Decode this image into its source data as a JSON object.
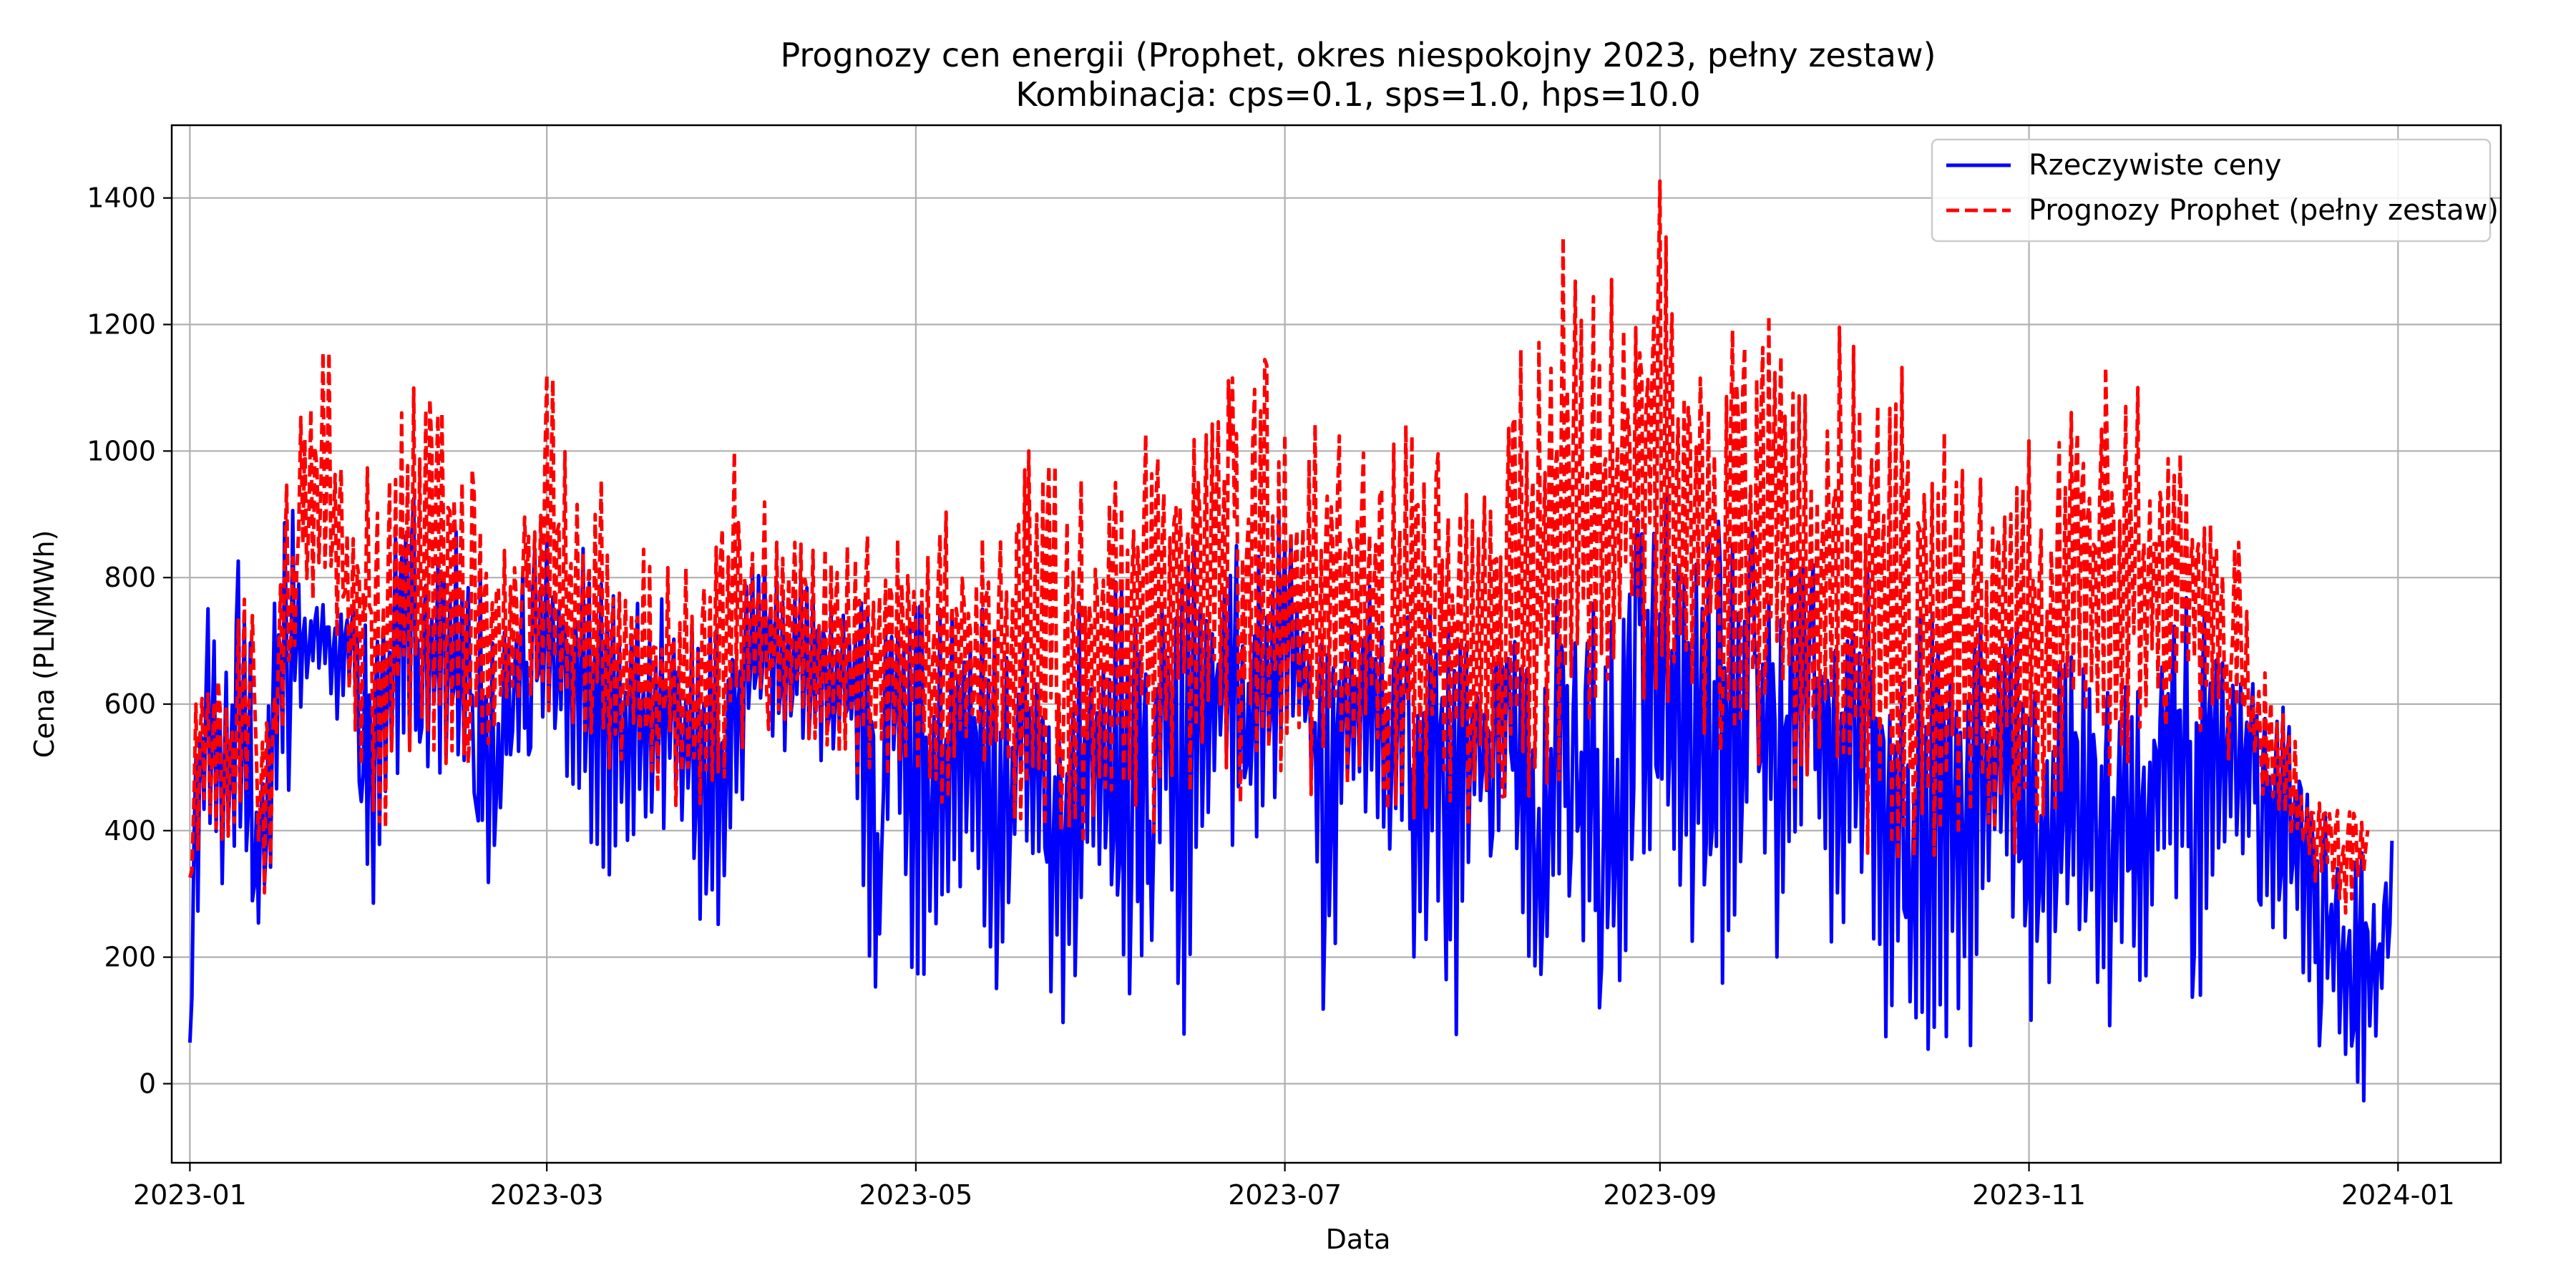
{
  "chart_data": {
    "type": "line",
    "title": "Prognozy cen energii (Prophet, okres niespokojny 2023, pełny zestaw)",
    "subtitle": "Kombinacja: cps=0.1, sps=1.0, hps=10.0",
    "xlabel": "Data",
    "ylabel": "Cena (PLN/MWh)",
    "x_range": [
      "2022-12-29",
      "2024-01-18"
    ],
    "ylim": [
      -125,
      1515
    ],
    "x_ticks": [
      "2023-01",
      "2023-03",
      "2023-05",
      "2023-07",
      "2023-09",
      "2023-11",
      "2024-01"
    ],
    "x_tick_dates": [
      "2023-01-01",
      "2023-03-01",
      "2023-05-01",
      "2023-07-01",
      "2023-09-01",
      "2023-11-01",
      "2024-01-01"
    ],
    "y_ticks": [
      0,
      200,
      400,
      600,
      800,
      1000,
      1200,
      1400
    ],
    "grid": true,
    "legend_position": "top-right",
    "series": [
      {
        "name": "Rzeczywiste ceny",
        "color": "#0000ff",
        "style": "solid",
        "x": [
          "2023-01-01",
          "2023-01-02",
          "2023-01-04",
          "2023-01-06",
          "2023-01-08",
          "2023-01-10",
          "2023-01-12",
          "2023-01-14",
          "2023-01-16",
          "2023-01-18",
          "2023-01-20",
          "2023-01-23",
          "2023-01-25",
          "2023-01-28",
          "2023-01-31",
          "2023-02-02",
          "2023-02-05",
          "2023-02-08",
          "2023-02-11",
          "2023-02-14",
          "2023-02-17",
          "2023-02-20",
          "2023-02-23",
          "2023-02-26",
          "2023-03-01",
          "2023-03-04",
          "2023-03-07",
          "2023-03-10",
          "2023-03-13",
          "2023-03-16",
          "2023-03-19",
          "2023-03-22",
          "2023-03-25",
          "2023-03-28",
          "2023-03-31",
          "2023-04-03",
          "2023-04-06",
          "2023-04-09",
          "2023-04-12",
          "2023-04-15",
          "2023-04-18",
          "2023-04-21",
          "2023-04-24",
          "2023-04-27",
          "2023-04-30",
          "2023-05-03",
          "2023-05-06",
          "2023-05-09",
          "2023-05-12",
          "2023-05-15",
          "2023-05-18",
          "2023-05-21",
          "2023-05-24",
          "2023-05-27",
          "2023-05-30",
          "2023-06-02",
          "2023-06-05",
          "2023-06-08",
          "2023-06-11",
          "2023-06-14",
          "2023-06-17",
          "2023-06-20",
          "2023-06-23",
          "2023-06-26",
          "2023-06-29",
          "2023-07-02",
          "2023-07-05",
          "2023-07-08",
          "2023-07-11",
          "2023-07-14",
          "2023-07-17",
          "2023-07-20",
          "2023-07-23",
          "2023-07-26",
          "2023-07-29",
          "2023-08-01",
          "2023-08-04",
          "2023-08-07",
          "2023-08-10",
          "2023-08-13",
          "2023-08-16",
          "2023-08-19",
          "2023-08-22",
          "2023-08-25",
          "2023-08-28",
          "2023-08-31",
          "2023-09-03",
          "2023-09-06",
          "2023-09-09",
          "2023-09-12",
          "2023-09-15",
          "2023-09-18",
          "2023-09-21",
          "2023-09-24",
          "2023-09-27",
          "2023-09-30",
          "2023-10-03",
          "2023-10-06",
          "2023-10-09",
          "2023-10-12",
          "2023-10-15",
          "2023-10-18",
          "2023-10-21",
          "2023-10-24",
          "2023-10-27",
          "2023-10-30",
          "2023-11-02",
          "2023-11-05",
          "2023-11-08",
          "2023-11-11",
          "2023-11-14",
          "2023-11-17",
          "2023-11-20",
          "2023-11-23",
          "2023-11-26",
          "2023-11-29",
          "2023-12-02",
          "2023-12-05",
          "2023-12-08",
          "2023-12-11",
          "2023-12-14",
          "2023-12-17",
          "2023-12-19",
          "2023-12-21",
          "2023-12-23",
          "2023-12-25",
          "2023-12-27",
          "2023-12-29",
          "2023-12-31"
        ],
        "min": [
          30,
          200,
          380,
          300,
          320,
          310,
          80,
          280,
          420,
          480,
          620,
          650,
          560,
          620,
          190,
          350,
          500,
          540,
          450,
          500,
          460,
          260,
          520,
          520,
          560,
          460,
          440,
          280,
          350,
          400,
          400,
          380,
          350,
          80,
          200,
          520,
          560,
          520,
          540,
          480,
          500,
          480,
          105,
          500,
          80,
          70,
          240,
          280,
          260,
          70,
          400,
          320,
          50,
          35,
          380,
          250,
          20,
          150,
          380,
          15,
          330,
          480,
          300,
          380,
          380,
          580,
          440,
          15,
          480,
          420,
          380,
          350,
          50,
          320,
          40,
          380,
          360,
          440,
          130,
          70,
          350,
          190,
          120,
          70,
          200,
          300,
          200,
          230,
          120,
          170,
          300,
          340,
          160,
          420,
          300,
          160,
          320,
          160,
          30,
          30,
          60,
          10,
          -20,
          150,
          300,
          220,
          40,
          90,
          200,
          150,
          60,
          200,
          130,
          360,
          230,
          90,
          380,
          280,
          330,
          210,
          200,
          150,
          60,
          100,
          0,
          -50,
          -20,
          20,
          150
        ],
        "max": [
          70,
          680,
          780,
          660,
          780,
          940,
          700,
          650,
          870,
          920,
          760,
          760,
          800,
          770,
          720,
          760,
          980,
          950,
          880,
          940,
          880,
          700,
          800,
          850,
          870,
          800,
          850,
          790,
          830,
          790,
          800,
          780,
          770,
          740,
          760,
          820,
          840,
          820,
          800,
          790,
          780,
          760,
          760,
          780,
          760,
          750,
          760,
          740,
          760,
          700,
          720,
          700,
          720,
          780,
          720,
          820,
          760,
          700,
          760,
          800,
          920,
          800,
          860,
          820,
          880,
          920,
          740,
          760,
          760,
          800,
          760,
          720,
          760,
          760,
          740,
          760,
          740,
          760,
          700,
          720,
          800,
          760,
          760,
          820,
          880,
          980,
          900,
          920,
          900,
          880,
          880,
          860,
          840,
          820,
          820,
          840,
          860,
          790,
          760,
          760,
          720,
          840,
          760,
          760,
          760,
          740,
          700,
          720,
          700,
          680,
          640,
          650,
          660,
          700,
          760,
          820,
          780,
          720,
          690,
          640,
          600,
          580,
          520,
          380,
          360,
          380,
          350,
          360,
          390
        ]
      },
      {
        "name": "Prognozy Prophet (pełny zestaw)",
        "color": "#ff0000",
        "style": "dashed",
        "x": [
          "2023-01-01",
          "2023-01-02",
          "2023-01-04",
          "2023-01-06",
          "2023-01-08",
          "2023-01-10",
          "2023-01-12",
          "2023-01-14",
          "2023-01-16",
          "2023-01-18",
          "2023-01-20",
          "2023-01-23",
          "2023-01-25",
          "2023-01-28",
          "2023-01-31",
          "2023-02-02",
          "2023-02-05",
          "2023-02-08",
          "2023-02-11",
          "2023-02-14",
          "2023-02-17",
          "2023-02-20",
          "2023-02-23",
          "2023-02-26",
          "2023-03-01",
          "2023-03-04",
          "2023-03-07",
          "2023-03-10",
          "2023-03-13",
          "2023-03-16",
          "2023-03-19",
          "2023-03-22",
          "2023-03-25",
          "2023-03-28",
          "2023-03-31",
          "2023-04-03",
          "2023-04-06",
          "2023-04-09",
          "2023-04-12",
          "2023-04-15",
          "2023-04-18",
          "2023-04-21",
          "2023-04-24",
          "2023-04-27",
          "2023-04-30",
          "2023-05-03",
          "2023-05-06",
          "2023-05-09",
          "2023-05-12",
          "2023-05-15",
          "2023-05-18",
          "2023-05-21",
          "2023-05-24",
          "2023-05-27",
          "2023-05-30",
          "2023-06-02",
          "2023-06-05",
          "2023-06-08",
          "2023-06-11",
          "2023-06-14",
          "2023-06-17",
          "2023-06-20",
          "2023-06-23",
          "2023-06-26",
          "2023-06-29",
          "2023-07-02",
          "2023-07-05",
          "2023-07-08",
          "2023-07-11",
          "2023-07-14",
          "2023-07-17",
          "2023-07-20",
          "2023-07-23",
          "2023-07-26",
          "2023-07-29",
          "2023-08-01",
          "2023-08-04",
          "2023-08-07",
          "2023-08-10",
          "2023-08-13",
          "2023-08-16",
          "2023-08-19",
          "2023-08-22",
          "2023-08-25",
          "2023-08-28",
          "2023-08-31",
          "2023-09-03",
          "2023-09-06",
          "2023-09-09",
          "2023-09-12",
          "2023-09-15",
          "2023-09-18",
          "2023-09-21",
          "2023-09-24",
          "2023-09-27",
          "2023-09-30",
          "2023-10-03",
          "2023-10-06",
          "2023-10-09",
          "2023-10-12",
          "2023-10-15",
          "2023-10-18",
          "2023-10-21",
          "2023-10-24",
          "2023-10-27",
          "2023-10-30",
          "2023-11-02",
          "2023-11-05",
          "2023-11-08",
          "2023-11-11",
          "2023-11-14",
          "2023-11-17",
          "2023-11-20",
          "2023-11-23",
          "2023-11-26",
          "2023-11-29",
          "2023-12-02",
          "2023-12-05",
          "2023-12-08",
          "2023-12-11",
          "2023-12-14",
          "2023-12-17",
          "2023-12-19",
          "2023-12-21",
          "2023-12-23",
          "2023-12-25",
          "2023-12-27",
          "2023-12-29",
          "2023-12-31"
        ],
        "min": [
          270,
          350,
          400,
          380,
          360,
          420,
          300,
          280,
          500,
          520,
          720,
          760,
          700,
          560,
          400,
          390,
          480,
          560,
          480,
          520,
          500,
          500,
          560,
          560,
          580,
          560,
          520,
          480,
          440,
          460,
          460,
          440,
          440,
          440,
          440,
          520,
          560,
          560,
          540,
          520,
          480,
          480,
          450,
          480,
          460,
          380,
          400,
          420,
          410,
          420,
          400,
          400,
          410,
          380,
          380,
          360,
          380,
          380,
          420,
          420,
          460,
          480,
          440,
          460,
          440,
          480,
          440,
          420,
          460,
          440,
          440,
          420,
          420,
          440,
          440,
          400,
          440,
          460,
          440,
          440,
          480,
          500,
          520,
          560,
          600,
          620,
          600,
          560,
          540,
          520,
          520,
          500,
          500,
          460,
          420,
          400,
          380,
          360,
          340,
          360,
          360,
          340,
          360,
          380,
          400,
          360,
          400,
          420,
          440,
          460,
          460,
          500,
          520,
          560,
          580,
          560,
          540,
          500,
          480,
          440,
          400,
          320,
          300,
          280,
          260,
          280,
          300,
          300,
          320
        ],
        "max": [
          370,
          600,
          620,
          640,
          600,
          900,
          660,
          640,
          920,
          1000,
          1080,
          1170,
          1150,
          880,
          1000,
          980,
          1150,
          1110,
          1060,
          1060,
          960,
          880,
          880,
          900,
          1180,
          1050,
          1000,
          960,
          900,
          860,
          840,
          860,
          830,
          820,
          1110,
          900,
          940,
          900,
          880,
          860,
          860,
          840,
          880,
          880,
          900,
          880,
          920,
          900,
          900,
          920,
          1000,
          1000,
          1000,
          980,
          920,
          1000,
          1080,
          1100,
          1120,
          1110,
          1140,
          1100,
          1120,
          1150,
          1140,
          1120,
          1120,
          1100,
          1060,
          1040,
          1080,
          1100,
          1080,
          1000,
          960,
          920,
          1010,
          1180,
          1220,
          1260,
          1350,
          1320,
          1300,
          1280,
          1300,
          1440,
          1400,
          1300,
          1250,
          1200,
          1310,
          1270,
          1220,
          1200,
          1230,
          1200,
          1180,
          1200,
          1240,
          1120,
          1100,
          1080,
          1000,
          980,
          980,
          1000,
          1040,
          1000,
          1080,
          1150,
          1130,
          1120,
          1100,
          1080,
          1000,
          920,
          960,
          900,
          700,
          650,
          560,
          520,
          480,
          460,
          460,
          470,
          420
        ]
      }
    ]
  }
}
